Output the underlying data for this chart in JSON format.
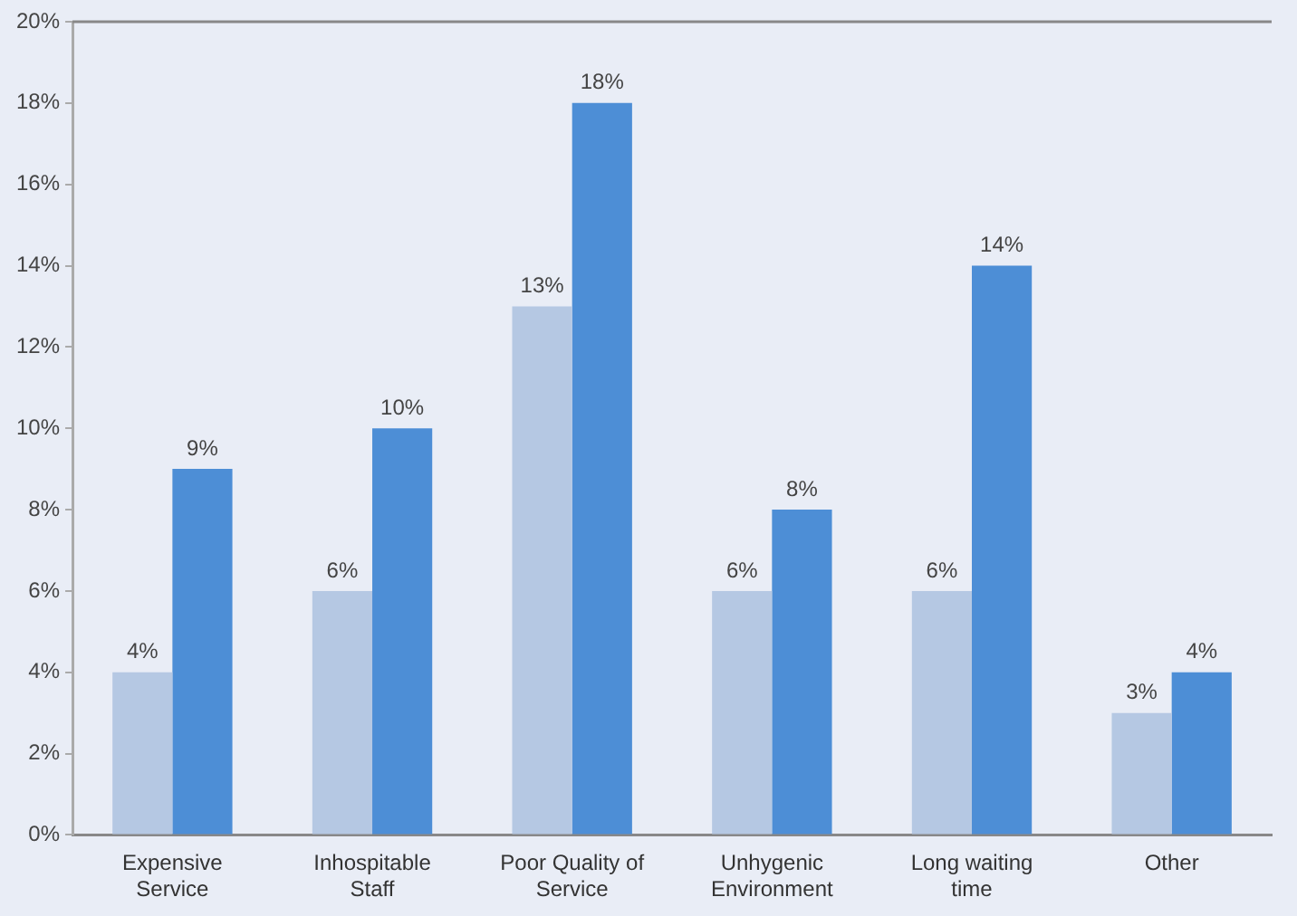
{
  "chart_data": {
    "type": "bar",
    "categories": [
      "Expensive Service",
      "Inhospitable Staff",
      "Poor Quality of Service",
      "Unhygenic Environment",
      "Long waiting time",
      "Other"
    ],
    "series": [
      {
        "color": "#b5c8e3",
        "values": [
          4,
          6,
          13,
          6,
          6,
          3
        ],
        "value_labels": [
          "4%",
          "6%",
          "13%",
          "6%",
          "6%",
          "3%"
        ]
      },
      {
        "color": "#4d8ed6",
        "values": [
          9,
          10,
          18,
          8,
          14,
          4
        ],
        "value_labels": [
          "9%",
          "10%",
          "18%",
          "8%",
          "14%",
          "4%"
        ]
      }
    ],
    "ylim": [
      0,
      20
    ],
    "yticks": [
      {
        "value": 0,
        "label": "0%"
      },
      {
        "value": 2,
        "label": "2%"
      },
      {
        "value": 4,
        "label": "4%"
      },
      {
        "value": 6,
        "label": "6%"
      },
      {
        "value": 8,
        "label": "8%"
      },
      {
        "value": 10,
        "label": "10%"
      },
      {
        "value": 12,
        "label": "12%"
      },
      {
        "value": 14,
        "label": "14%"
      },
      {
        "value": 16,
        "label": "16%"
      },
      {
        "value": 18,
        "label": "18%"
      },
      {
        "value": 20,
        "label": "20%"
      }
    ],
    "grid": false,
    "legend": false
  }
}
